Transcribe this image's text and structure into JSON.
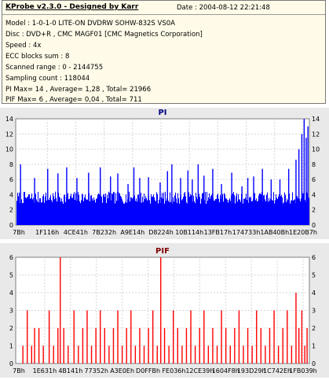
{
  "info": {
    "title": "KProbe v2.3.0 - Designed by Karr",
    "date": "Date : 2004-08-12 22:21:48",
    "lines": [
      "Model : 1-0-1-0 LITE-ON DVDRW SOHW-832S  VS0A",
      "Disc : DVD+R , CMC MAGF01 [CMC Magnetics Corporation]",
      "Speed : 4x",
      "ECC blocks sum : 8",
      "Scanned range : 0 - 2144755",
      "Sampling count : 118044",
      "PI Max= 14 , Average= 1,28 , Total= 21966",
      "PIF Max= 6 , Average= 0,04 , Total= 711"
    ]
  },
  "colors": {
    "pi": "#0000ff",
    "pif": "#ff0000",
    "pi_title": "#00007f",
    "pif_title": "#7f0000"
  },
  "chart_data": [
    {
      "type": "bar",
      "title": "PI",
      "ylim": [
        0,
        14
      ],
      "yticks": [
        0,
        2,
        4,
        6,
        8,
        10,
        12,
        14
      ],
      "xticks": [
        "7Bh",
        "1F116h",
        "4CE41h",
        "7B232h",
        "A9E14h",
        "D8224h",
        "10B114h",
        "13FB17h",
        "174733h",
        "1AB40Bh",
        "1E20B7h"
      ],
      "grid": true,
      "baseline": 3.6,
      "base_amplitude": 0.8,
      "spikes": [
        [
          0.012,
          8
        ],
        [
          0.06,
          6.2
        ],
        [
          0.105,
          7.4
        ],
        [
          0.14,
          6.8
        ],
        [
          0.17,
          7.6
        ],
        [
          0.205,
          6.2
        ],
        [
          0.245,
          6.9
        ],
        [
          0.285,
          7.6
        ],
        [
          0.32,
          6.4
        ],
        [
          0.345,
          6.8
        ],
        [
          0.38,
          5.4
        ],
        [
          0.4,
          7.6
        ],
        [
          0.42,
          6.2
        ],
        [
          0.45,
          6.3
        ],
        [
          0.49,
          5.6
        ],
        [
          0.515,
          7.1
        ],
        [
          0.53,
          8.0
        ],
        [
          0.56,
          6.2
        ],
        [
          0.585,
          7.2
        ],
        [
          0.6,
          6.0
        ],
        [
          0.62,
          8.0
        ],
        [
          0.64,
          6.5
        ],
        [
          0.67,
          7.4
        ],
        [
          0.7,
          5.4
        ],
        [
          0.735,
          6.9
        ],
        [
          0.77,
          5.1
        ],
        [
          0.79,
          6.2
        ],
        [
          0.81,
          6.4
        ],
        [
          0.84,
          7.4
        ],
        [
          0.87,
          6.0
        ],
        [
          0.9,
          6.0
        ],
        [
          0.93,
          7.4
        ],
        [
          0.955,
          8.6
        ],
        [
          0.965,
          10.0
        ],
        [
          0.975,
          12.0
        ],
        [
          0.983,
          14.0
        ],
        [
          0.99,
          11.5
        ],
        [
          0.996,
          13.0
        ]
      ]
    },
    {
      "type": "bar",
      "title": "PIF",
      "ylim": [
        0,
        6
      ],
      "yticks": [
        0,
        1,
        2,
        3,
        4,
        5,
        6
      ],
      "xticks": [
        "7Bh",
        "1E631h",
        "4B141h",
        "77352h",
        "A3E0Eh",
        "D0FFBh",
        "FE036h",
        "12CE39h",
        "1604F8h",
        "193D29h",
        "1C742Eh",
        "1FB039h"
      ],
      "grid": true,
      "spikes": [
        [
          0.02,
          1
        ],
        [
          0.035,
          3
        ],
        [
          0.05,
          1
        ],
        [
          0.06,
          2
        ],
        [
          0.075,
          2
        ],
        [
          0.09,
          1
        ],
        [
          0.11,
          3
        ],
        [
          0.125,
          1
        ],
        [
          0.14,
          2
        ],
        [
          0.148,
          6
        ],
        [
          0.16,
          2
        ],
        [
          0.175,
          1
        ],
        [
          0.195,
          3
        ],
        [
          0.21,
          1
        ],
        [
          0.225,
          2
        ],
        [
          0.24,
          3
        ],
        [
          0.255,
          1
        ],
        [
          0.27,
          2
        ],
        [
          0.285,
          3
        ],
        [
          0.3,
          2
        ],
        [
          0.315,
          1
        ],
        [
          0.33,
          2
        ],
        [
          0.345,
          3
        ],
        [
          0.36,
          1
        ],
        [
          0.375,
          2
        ],
        [
          0.39,
          3
        ],
        [
          0.405,
          1
        ],
        [
          0.42,
          2
        ],
        [
          0.435,
          1
        ],
        [
          0.45,
          2
        ],
        [
          0.465,
          3
        ],
        [
          0.48,
          1
        ],
        [
          0.492,
          6
        ],
        [
          0.505,
          2
        ],
        [
          0.52,
          1
        ],
        [
          0.535,
          3
        ],
        [
          0.55,
          2
        ],
        [
          0.565,
          1
        ],
        [
          0.58,
          2
        ],
        [
          0.595,
          3
        ],
        [
          0.61,
          1
        ],
        [
          0.625,
          2
        ],
        [
          0.64,
          3
        ],
        [
          0.655,
          1
        ],
        [
          0.67,
          2
        ],
        [
          0.685,
          1
        ],
        [
          0.7,
          3
        ],
        [
          0.715,
          2
        ],
        [
          0.73,
          1
        ],
        [
          0.745,
          2
        ],
        [
          0.76,
          3
        ],
        [
          0.775,
          1
        ],
        [
          0.79,
          2
        ],
        [
          0.805,
          1
        ],
        [
          0.82,
          3
        ],
        [
          0.835,
          2
        ],
        [
          0.85,
          1
        ],
        [
          0.865,
          2
        ],
        [
          0.88,
          3
        ],
        [
          0.895,
          1
        ],
        [
          0.91,
          2
        ],
        [
          0.925,
          3
        ],
        [
          0.94,
          1
        ],
        [
          0.955,
          4
        ],
        [
          0.965,
          2
        ],
        [
          0.975,
          3
        ],
        [
          0.985,
          1
        ],
        [
          0.993,
          2
        ]
      ]
    }
  ]
}
